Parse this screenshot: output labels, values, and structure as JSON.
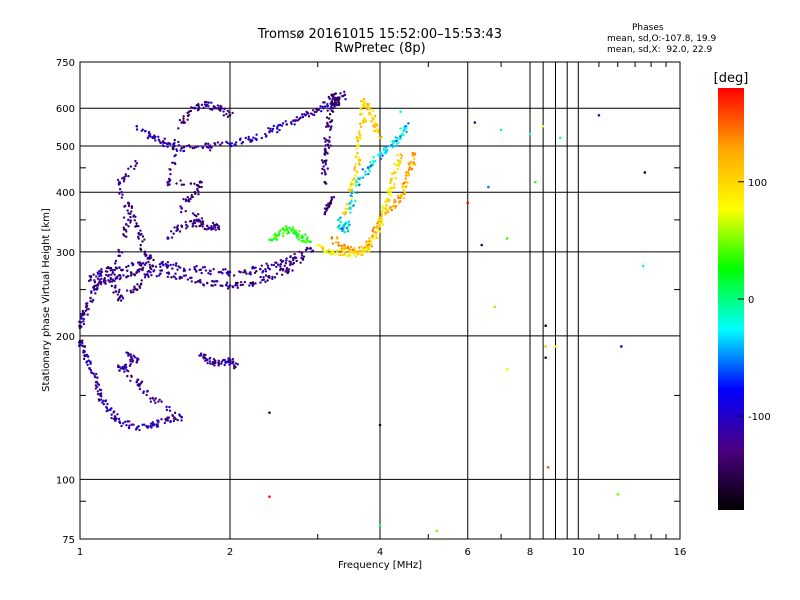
{
  "title_line1": "Tromsø 20161015 15:52:00–15:53:43",
  "title_line2": "RwPretec (8p)",
  "stats": {
    "heading": "Phases",
    "line_o": "mean, sd,O:-107.8, 19.9",
    "line_x": "mean, sd,X:  92.0, 22.9"
  },
  "colorbar": {
    "unit_label": "[deg]",
    "ticks": [
      100,
      0,
      -100
    ],
    "range": [
      -180,
      180
    ],
    "colors": [
      "#000000",
      "#4b0082",
      "#0000ff",
      "#00ffff",
      "#00ff00",
      "#ffff00",
      "#ffa500",
      "#ff0000"
    ]
  },
  "chart_data": {
    "type": "scatter",
    "title": "Tromsø 20161015 15:52:00–15:53:43",
    "subtitle": "RwPretec (8p)",
    "xlabel": "Frequency [MHz]",
    "ylabel": "Stationary phase Virtual Height [km]",
    "xscale": "log",
    "yscale": "log",
    "xlim": [
      1,
      16
    ],
    "ylim": [
      75,
      750
    ],
    "x_ticks": [
      1,
      2,
      4,
      6,
      8,
      10,
      16
    ],
    "y_ticks": [
      75,
      100,
      200,
      300,
      400,
      500,
      600,
      750
    ],
    "grid": true,
    "color_variable": "phase [deg]",
    "series": [
      {
        "points": [
          [
            1.0,
            208
          ],
          [
            1.02,
            222
          ],
          [
            1.05,
            240
          ],
          [
            1.08,
            255
          ],
          [
            1.12,
            262
          ],
          [
            1.2,
            268
          ],
          [
            1.3,
            272
          ],
          [
            1.45,
            270
          ],
          [
            1.6,
            265
          ],
          [
            1.8,
            258
          ],
          [
            2.0,
            255
          ],
          [
            2.2,
            258
          ],
          [
            2.4,
            265
          ],
          [
            2.6,
            275
          ],
          [
            2.8,
            290
          ]
        ],
        "phase": -125
      },
      {
        "points": [
          [
            1.05,
            262
          ],
          [
            1.1,
            270
          ],
          [
            1.2,
            278
          ],
          [
            1.35,
            282
          ],
          [
            1.5,
            281
          ],
          [
            1.7,
            276
          ],
          [
            1.9,
            272
          ],
          [
            2.1,
            272
          ],
          [
            2.3,
            276
          ],
          [
            2.5,
            282
          ],
          [
            2.7,
            292
          ],
          [
            2.9,
            305
          ]
        ],
        "phase": -118
      },
      {
        "points": [
          [
            1.0,
            195
          ],
          [
            1.02,
            185
          ],
          [
            1.05,
            175
          ],
          [
            1.08,
            160
          ],
          [
            1.1,
            150
          ],
          [
            1.15,
            140
          ],
          [
            1.2,
            132
          ],
          [
            1.3,
            128
          ],
          [
            1.4,
            130
          ],
          [
            1.5,
            133
          ],
          [
            1.6,
            135
          ],
          [
            1.4,
            148
          ],
          [
            1.3,
            160
          ],
          [
            1.2,
            172
          ],
          [
            1.3,
            176
          ],
          [
            1.25,
            182
          ]
        ],
        "phase": -115
      },
      {
        "points": [
          [
            1.3,
            550
          ],
          [
            1.4,
            520
          ],
          [
            1.5,
            505
          ],
          [
            1.6,
            495
          ],
          [
            1.8,
            498
          ],
          [
            2.0,
            505
          ],
          [
            2.2,
            515
          ],
          [
            2.4,
            535
          ],
          [
            2.6,
            555
          ],
          [
            2.8,
            575
          ],
          [
            3.0,
            595
          ],
          [
            3.2,
            620
          ],
          [
            3.4,
            640
          ]
        ],
        "phase": -110
      },
      {
        "points": [
          [
            1.25,
            380
          ],
          [
            1.3,
            340
          ],
          [
            1.35,
            300
          ],
          [
            1.4,
            280
          ],
          [
            1.3,
            250
          ],
          [
            1.2,
            240
          ],
          [
            1.15,
            260
          ],
          [
            1.2,
            300
          ],
          [
            1.25,
            350
          ],
          [
            1.2,
            420
          ],
          [
            1.3,
            460
          ]
        ],
        "phase": -130
      },
      {
        "points": [
          [
            1.5,
            320
          ],
          [
            1.6,
            340
          ],
          [
            1.7,
            345
          ],
          [
            1.8,
            340
          ],
          [
            1.9,
            335
          ],
          [
            1.6,
            370
          ],
          [
            1.7,
            400
          ],
          [
            1.75,
            420
          ],
          [
            1.5,
            420
          ],
          [
            1.6,
            560
          ],
          [
            1.7,
            600
          ],
          [
            1.8,
            610
          ],
          [
            1.9,
            600
          ],
          [
            2.0,
            580
          ]
        ],
        "phase": -128
      },
      {
        "points": [
          [
            1.75,
            182
          ],
          [
            1.8,
            178
          ],
          [
            1.9,
            175
          ],
          [
            2.0,
            178
          ],
          [
            2.05,
            172
          ]
        ],
        "phase": -120
      },
      {
        "points": [
          [
            3.1,
            420
          ],
          [
            3.1,
            480
          ],
          [
            3.15,
            550
          ],
          [
            3.2,
            600
          ],
          [
            3.3,
            620
          ],
          [
            3.2,
            640
          ],
          [
            3.1,
            360
          ],
          [
            3.2,
            390
          ]
        ],
        "phase": -135
      },
      {
        "points": [
          [
            3.4,
            360
          ],
          [
            3.5,
            400
          ],
          [
            3.6,
            440
          ],
          [
            3.6,
            500
          ],
          [
            3.7,
            560
          ],
          [
            3.7,
            620
          ],
          [
            3.8,
            600
          ],
          [
            3.9,
            560
          ],
          [
            4.0,
            520
          ]
        ],
        "phase": 100
      },
      {
        "points": [
          [
            3.2,
            320
          ],
          [
            3.4,
            305
          ],
          [
            3.6,
            300
          ],
          [
            3.8,
            310
          ],
          [
            3.9,
            330
          ],
          [
            4.0,
            350
          ],
          [
            4.2,
            370
          ],
          [
            4.4,
            390
          ],
          [
            4.5,
            420
          ],
          [
            4.6,
            450
          ],
          [
            4.7,
            480
          ]
        ],
        "phase": 125
      },
      {
        "points": [
          [
            3.0,
            310
          ],
          [
            3.2,
            300
          ],
          [
            3.4,
            298
          ],
          [
            3.6,
            296
          ],
          [
            3.8,
            305
          ],
          [
            4.0,
            340
          ],
          [
            4.1,
            370
          ],
          [
            4.2,
            400
          ],
          [
            4.3,
            440
          ],
          [
            4.4,
            480
          ]
        ],
        "phase": 95
      },
      {
        "points": [
          [
            2.4,
            318
          ],
          [
            2.5,
            325
          ],
          [
            2.6,
            335
          ],
          [
            2.7,
            330
          ],
          [
            2.8,
            322
          ],
          [
            2.9,
            315
          ]
        ],
        "phase": 30
      },
      {
        "points": [
          [
            3.3,
            350
          ],
          [
            3.4,
            330
          ],
          [
            3.5,
            370
          ],
          [
            3.6,
            420
          ],
          [
            3.8,
            450
          ],
          [
            4.0,
            480
          ],
          [
            4.2,
            500
          ],
          [
            4.4,
            520
          ],
          [
            4.5,
            550
          ]
        ],
        "phase": -30
      },
      {
        "points": [
          [
            4.0,
            130
          ],
          [
            4.0,
            80
          ],
          [
            2.4,
            92
          ],
          [
            2.4,
            138
          ],
          [
            5.2,
            78
          ],
          [
            6.0,
            380
          ],
          [
            6.4,
            310
          ],
          [
            6.6,
            410
          ],
          [
            7.0,
            540
          ],
          [
            7.2,
            320
          ],
          [
            8.0,
            530
          ],
          [
            8.2,
            420
          ],
          [
            8.6,
            210
          ],
          [
            8.6,
            190
          ],
          [
            8.7,
            106
          ],
          [
            8.5,
            550
          ],
          [
            9.0,
            190
          ],
          [
            9.2,
            520
          ],
          [
            11.0,
            580
          ],
          [
            12.0,
            93
          ],
          [
            12.2,
            190
          ],
          [
            13.5,
            280
          ],
          [
            13.6,
            440
          ],
          [
            6.8,
            230
          ],
          [
            7.2,
            170
          ],
          [
            8.6,
            180
          ],
          [
            6.2,
            560
          ],
          [
            4.4,
            590
          ]
        ],
        "phase": 0
      }
    ]
  }
}
